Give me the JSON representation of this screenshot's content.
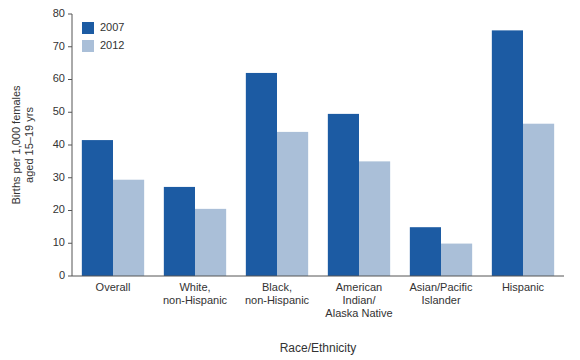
{
  "chart_data": {
    "type": "bar",
    "categories": [
      "Overall",
      "White,\nnon-Hispanic",
      "Black,\nnon-Hispanic",
      "American\nIndian/\nAlaska Native",
      "Asian/Pacific\nIslander",
      "Hispanic"
    ],
    "series": [
      {
        "name": "2007",
        "color": "#1c5ba3",
        "values": [
          41.5,
          27.2,
          62.0,
          49.5,
          14.9,
          75.0
        ]
      },
      {
        "name": "2012",
        "color": "#aabfd8",
        "values": [
          29.4,
          20.5,
          44.0,
          35.0,
          9.9,
          46.5
        ]
      }
    ],
    "xlabel": "Race/Ethnicity",
    "ylabel": "Births per 1,000 females\naged 15–19 yrs",
    "ylim": [
      0,
      80
    ],
    "yticks": [
      0,
      10,
      20,
      30,
      40,
      50,
      60,
      70,
      80
    ],
    "legend": "upper left",
    "grid": false
  }
}
